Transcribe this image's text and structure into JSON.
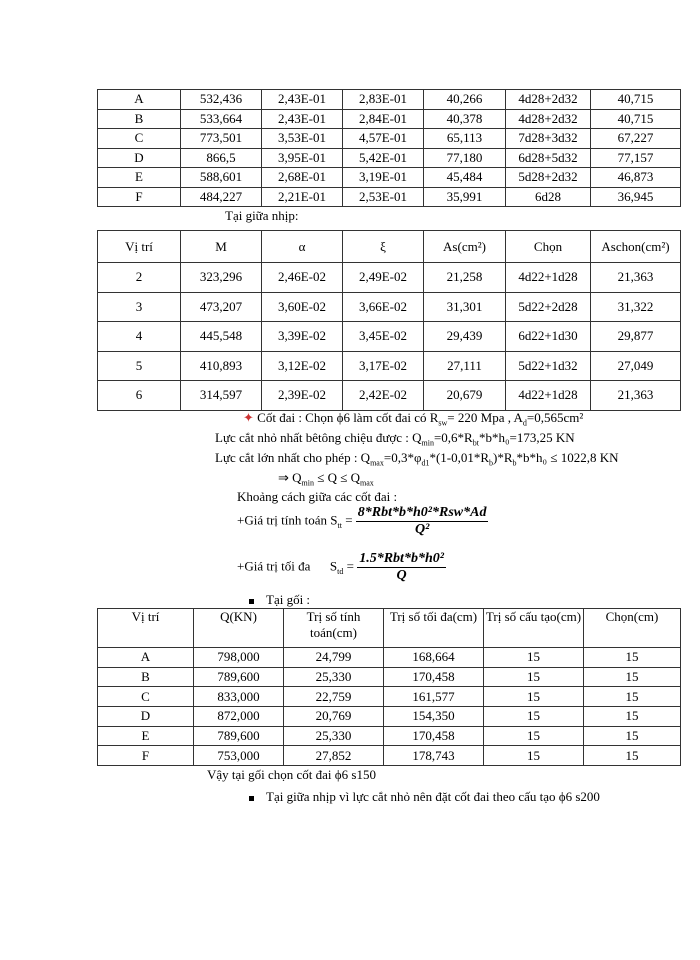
{
  "table_support": {
    "rows": [
      [
        "A",
        "532,436",
        "2,43E-01",
        "2,83E-01",
        "40,266",
        "4d28+2d32",
        "40,715"
      ],
      [
        "B",
        "533,664",
        "2,43E-01",
        "2,84E-01",
        "40,378",
        "4d28+2d32",
        "40,715"
      ],
      [
        "C",
        "773,501",
        "3,53E-01",
        "4,57E-01",
        "65,113",
        "7d28+3d32",
        "67,227"
      ],
      [
        "D",
        "866,5",
        "3,95E-01",
        "5,42E-01",
        "77,180",
        "6d28+5d32",
        "77,157"
      ],
      [
        "E",
        "588,601",
        "2,68E-01",
        "3,19E-01",
        "45,484",
        "5d28+2d32",
        "46,873"
      ],
      [
        "F",
        "484,227",
        "2,21E-01",
        "2,53E-01",
        "35,991",
        "6d28",
        "36,945"
      ]
    ]
  },
  "midspan_heading": "Tại giữa nhịp:",
  "table_midspan": {
    "headers": [
      "Vị trí",
      "M",
      "α",
      "ξ",
      "As(cm²)",
      "Chọn",
      "Aschon(cm²)"
    ],
    "rows": [
      [
        "2",
        "323,296",
        "2,46E-02",
        "2,49E-02",
        "21,258",
        "4d22+1d28",
        "21,363"
      ],
      [
        "3",
        "473,207",
        "3,60E-02",
        "3,66E-02",
        "31,301",
        "5d22+2d28",
        "31,322"
      ],
      [
        "4",
        "445,548",
        "3,39E-02",
        "3,45E-02",
        "29,439",
        "6d22+1d30",
        "29,877"
      ],
      [
        "5",
        "410,893",
        "3,12E-02",
        "3,17E-02",
        "27,111",
        "5d22+1d32",
        "27,049"
      ],
      [
        "6",
        "314,597",
        "2,39E-02",
        "2,42E-02",
        "20,679",
        "4d22+1d28",
        "21,363"
      ]
    ]
  },
  "text": {
    "stirrup": "Cốt đai : Chọn ϕ6 làm cốt đai có R",
    "stirrup_sub": "sw",
    "stirrup_rest": "= 220 Mpa , A",
    "stirrup_sub2": "d",
    "stirrup_end": "=0,565cm²",
    "qmin": "Lực cắt nhỏ nhất bêtông chiệu được : Q",
    "qmin_rest": "=0,6*R",
    "qmin_end": "*b*h₀=173,25 KN",
    "qmax": "Lực cắt lớn nhất cho phép : Q",
    "qmax_rest": "=0,3*φ",
    "qmax_end": "*(1-0,01*R",
    "qmax_end2": ")*R",
    "qmax_end3": "*b*h₀ ≤ 1022,8 KN",
    "cond": "⇒ Q",
    "cond_mid": " ≤ Q ≤ Q",
    "spacing": "Khoảng cách giữa các cốt đai :",
    "calc_label": "+Giá trị tính toán S",
    "calc_num": "8*Rbt*b*h0²*Rsw*Ad",
    "calc_den": "Q²",
    "max_label": "+Giá trị tối đa",
    "max_num": "1.5*Rbt*b*h0²",
    "max_den": "Q",
    "support_heading": "Tại gối :",
    "conclusion": "Vậy tại gối chọn cốt đai ϕ6 s150",
    "midspan_note": "Tại giữa nhịp vì lực cắt nhỏ nên đặt cốt đai theo cấu tạo ϕ6 s200"
  },
  "table_stirrup": {
    "headers": [
      "Vị trí",
      "Q(KN)",
      "Trị số tính toán(cm)",
      "Trị số tối đa(cm)",
      "Trị số cấu tạo(cm)",
      "Chọn(cm)"
    ],
    "rows": [
      [
        "A",
        "798,000",
        "24,799",
        "168,664",
        "15",
        "15"
      ],
      [
        "B",
        "789,600",
        "25,330",
        "170,458",
        "15",
        "15"
      ],
      [
        "C",
        "833,000",
        "22,759",
        "161,577",
        "15",
        "15"
      ],
      [
        "D",
        "872,000",
        "20,769",
        "154,350",
        "15",
        "15"
      ],
      [
        "E",
        "789,600",
        "25,330",
        "170,458",
        "15",
        "15"
      ],
      [
        "F",
        "753,000",
        "27,852",
        "178,743",
        "15",
        "15"
      ]
    ]
  }
}
